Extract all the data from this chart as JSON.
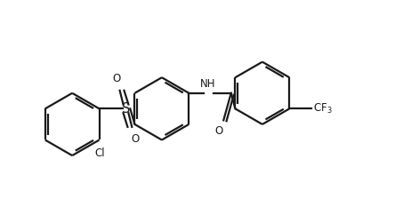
{
  "bg_color": "#ffffff",
  "line_color": "#1a1a1a",
  "line_width": 1.6,
  "font_size": 8.5,
  "figsize": [
    4.62,
    2.33
  ],
  "dpi": 100,
  "xlim": [
    0,
    9.24
  ],
  "ylim": [
    0,
    4.66
  ]
}
